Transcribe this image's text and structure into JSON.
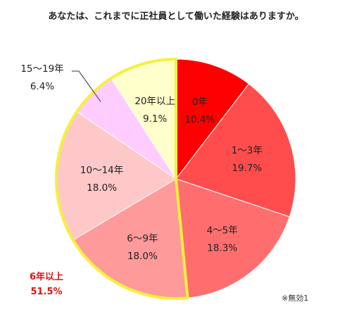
{
  "chart_data": {
    "type": "pie",
    "title": "あなたは、これまでに正社員として働いた経験はありますか。",
    "slices": [
      {
        "label": "0年",
        "value": 10.4,
        "value_text": "10.4%",
        "color": "#ff0000"
      },
      {
        "label": "1～3年",
        "value": 19.7,
        "value_text": "19.7%",
        "color": "#ff4d4d"
      },
      {
        "label": "4～5年",
        "value": 18.3,
        "value_text": "18.3%",
        "color": "#ff6e6e"
      },
      {
        "label": "6～9年",
        "value": 18.0,
        "value_text": "18.0%",
        "color": "#ff9a9a"
      },
      {
        "label": "10～14年",
        "value": 18.0,
        "value_text": "18.0%",
        "color": "#ffc8c8"
      },
      {
        "label": "15～19年",
        "value": 6.4,
        "value_text": "6.4%",
        "color": "#ffccff"
      },
      {
        "label": "20年以上",
        "value": 9.1,
        "value_text": "9.1%",
        "color": "#ffffcc"
      }
    ],
    "highlight_group": {
      "label": "6年以上",
      "value_text": "51.5%",
      "members": [
        "6～9年",
        "10～14年",
        "15～19年",
        "20年以上"
      ],
      "outline_color": "#f5f03c",
      "label_color": "#e01010"
    },
    "note": "※無効1"
  }
}
